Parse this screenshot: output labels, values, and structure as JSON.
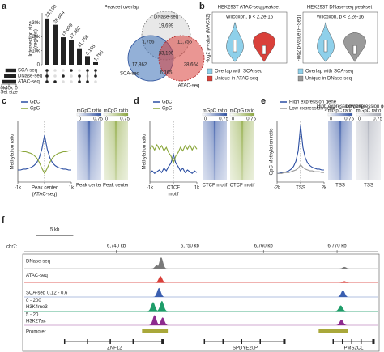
{
  "panel_a": {
    "label": "a",
    "title": "Peakset overlap",
    "upset": {
      "ylabel": "Intersection size",
      "ylabel_sub": "(regions)",
      "ylim": [
        0,
        36000
      ],
      "yticks": [
        0,
        {
          "value": 10000,
          "label": "10k"
        },
        {
          "value": 20000,
          "label": "20k"
        },
        {
          "value": 30000,
          "label": "30k"
        }
      ],
      "values": [
        33190,
        28664,
        19699,
        17862,
        11756,
        6165,
        1756
      ],
      "value_labels": [
        "33,190",
        "28,664",
        "19,699",
        "17,862",
        "11,756",
        "6,165",
        "1,756"
      ],
      "members": [
        [
          0,
          1,
          2
        ],
        [
          2
        ],
        [
          1
        ],
        [
          0
        ],
        [
          1,
          2
        ],
        [
          0,
          2
        ],
        [
          0,
          1
        ]
      ],
      "sets": [
        "SCA-seq",
        "DNase-seq",
        "ATAC-seq"
      ],
      "set_sizes": [
        58973,
        66401,
        79775
      ],
      "set_xlim": [
        80000,
        0
      ],
      "set_xticks": [
        {
          "value": 80000,
          "label": "80k"
        },
        {
          "value": 40000,
          "label": "40k"
        },
        0
      ],
      "set_label": "Set size"
    },
    "venn": {
      "labels": [
        "DNase-seq",
        "SCA-seq",
        "ATAC-seq"
      ],
      "colors": [
        "#bdbdbd",
        "#3b6fb6",
        "#d9403a"
      ],
      "regions": [
        "19,699",
        "11,756",
        "1,756",
        "17,862",
        "33,190",
        "28,664",
        "6,165"
      ]
    }
  },
  "panel_b": {
    "label": "b",
    "plots": [
      {
        "title": "HEK293T ATAC-seq peakset",
        "stat": "Wilcoxon, p < 2.2e-16",
        "ylabel": "-log2 p-value (MACS2)",
        "legend": [
          "Overlap with SCA-seq",
          "Unique in ATAC-seq"
        ],
        "colors": [
          "#8fd0ea",
          "#d9403a"
        ]
      },
      {
        "title": "HEK293T DNase-seq peakset",
        "stat": "Wilcoxon, p < 2.2e-16",
        "ylabel": "-log2 p-value (F-Seq)",
        "legend": [
          "Overlap with SCA-seq",
          "Unique in DNase-seq"
        ],
        "colors": [
          "#8fd0ea",
          "#9a9a9a"
        ]
      }
    ]
  },
  "panel_c": {
    "label": "c",
    "ylabel": "Methylation ratio",
    "ylim": [
      0.2,
      0.9
    ],
    "xticks": [
      {
        "value": -1000,
        "label": "-1k"
      },
      {
        "value": 0,
        "label": "Peak center"
      },
      {
        "value": 1000,
        "label": "1k"
      }
    ],
    "xsub": "(ATAC-seq)",
    "x": [
      -1000,
      -900,
      -800,
      -700,
      -600,
      -500,
      -400,
      -300,
      -200,
      -100,
      0,
      100,
      200,
      300,
      400,
      500,
      600,
      700,
      800,
      900,
      1000
    ],
    "series": [
      {
        "name": "GpC",
        "color": "#2b4ea2",
        "values": [
          0.34,
          0.34,
          0.35,
          0.35,
          0.36,
          0.37,
          0.39,
          0.42,
          0.48,
          0.58,
          0.74,
          0.58,
          0.48,
          0.42,
          0.39,
          0.37,
          0.36,
          0.35,
          0.35,
          0.34,
          0.34
        ]
      },
      {
        "name": "CpG",
        "color": "#8aa63a",
        "values": [
          0.56,
          0.56,
          0.55,
          0.55,
          0.54,
          0.53,
          0.51,
          0.48,
          0.43,
          0.36,
          0.3,
          0.36,
          0.43,
          0.48,
          0.51,
          0.53,
          0.54,
          0.55,
          0.55,
          0.56,
          0.56
        ]
      }
    ],
    "heatmaps": [
      {
        "title": [
          "mGpC ratio"
        ],
        "color": "#2b4ea2"
      },
      {
        "title": [
          "mCpG ratio"
        ],
        "color": "#8aa63a"
      }
    ],
    "cbar_ticks": [
      0,
      0.75
    ],
    "heat_label": "Peak center"
  },
  "panel_d": {
    "label": "d",
    "ylabel": "Methylation ratio",
    "ylim": [
      0.2,
      0.9
    ],
    "xticks": [
      {
        "value": -1000,
        "label": "-1k"
      },
      {
        "value": 0,
        "label": "CTCF"
      },
      {
        "value": 1000,
        "label": "1k"
      }
    ],
    "xsub": "motif",
    "x": [
      -1000,
      -900,
      -800,
      -700,
      -600,
      -500,
      -400,
      -300,
      -200,
      -100,
      0,
      100,
      200,
      300,
      400,
      500,
      600,
      700,
      800,
      900,
      1000
    ],
    "series": [
      {
        "name": "GpC",
        "color": "#2b4ea2",
        "values": [
          0.31,
          0.33,
          0.3,
          0.32,
          0.34,
          0.31,
          0.36,
          0.33,
          0.38,
          0.42,
          0.52,
          0.42,
          0.38,
          0.33,
          0.36,
          0.31,
          0.34,
          0.32,
          0.3,
          0.33,
          0.31
        ]
      },
      {
        "name": "CpG",
        "color": "#8aa63a",
        "values": [
          0.58,
          0.62,
          0.57,
          0.63,
          0.58,
          0.62,
          0.56,
          0.6,
          0.54,
          0.5,
          0.42,
          0.5,
          0.54,
          0.6,
          0.56,
          0.62,
          0.58,
          0.63,
          0.57,
          0.62,
          0.58
        ]
      }
    ],
    "heatmaps": [
      {
        "title": [
          "mGpC ratio"
        ],
        "color": "#2b4ea2"
      },
      {
        "title": [
          "mCpG ratio"
        ],
        "color": "#8aa63a"
      }
    ],
    "cbar_ticks": [
      0,
      0.75
    ],
    "heat_label": "CTCF motif"
  },
  "panel_e": {
    "label": "e",
    "ylabel": "GpC Methylation ratio",
    "ylim": [
      0.2,
      0.9
    ],
    "xticks": [
      {
        "value": -2000,
        "label": "-2k"
      },
      {
        "value": 0,
        "label": "TSS"
      },
      {
        "value": 2000,
        "label": "2k"
      }
    ],
    "x": [
      -2000,
      -1800,
      -1600,
      -1400,
      -1200,
      -1000,
      -800,
      -600,
      -400,
      -200,
      0,
      200,
      400,
      600,
      800,
      1000,
      1200,
      1400,
      1600,
      1800,
      2000
    ],
    "series": [
      {
        "name": "High expression gene",
        "color": "#2b4ea2",
        "values": [
          0.3,
          0.3,
          0.31,
          0.31,
          0.32,
          0.33,
          0.35,
          0.38,
          0.44,
          0.56,
          0.85,
          0.6,
          0.48,
          0.42,
          0.39,
          0.37,
          0.36,
          0.35,
          0.35,
          0.34,
          0.34
        ]
      },
      {
        "name": "Low expression gene",
        "color": "#9a9a9a",
        "values": [
          0.3,
          0.3,
          0.3,
          0.31,
          0.31,
          0.31,
          0.32,
          0.33,
          0.34,
          0.36,
          0.4,
          0.37,
          0.35,
          0.34,
          0.33,
          0.33,
          0.32,
          0.32,
          0.32,
          0.31,
          0.31
        ]
      }
    ],
    "heatmaps": [
      {
        "title": [
          "High expression gene",
          "mGpC ratio"
        ],
        "color": "#2b4ea2"
      },
      {
        "title": [
          "Low expression gene",
          "mGpC ratio"
        ],
        "color": "#a4a8b4"
      }
    ],
    "cbar_ticks": [
      0,
      0.75
    ],
    "heat_label": "TSS"
  },
  "panel_f": {
    "label": "f",
    "scale_label": "5 kb",
    "scale_kb": 5,
    "chrom": "chr7:",
    "xlim": [
      6727.5,
      6775.5
    ],
    "xticks": [
      {
        "value": 6740,
        "label": "6,740 kb"
      },
      {
        "value": 6750,
        "label": "6,750 kb"
      },
      {
        "value": 6760,
        "label": "6,760 kb"
      },
      {
        "value": 6770,
        "label": "6,770 kb"
      }
    ],
    "tracks": [
      {
        "name": "DNase-seq",
        "color": "#7a7a7a",
        "peaks": [
          6745.5,
          6746.1,
          6771.0
        ],
        "heights": [
          0.3,
          1.0,
          0.15
        ]
      },
      {
        "name": "ATAC-seq",
        "color": "#d9403a",
        "peaks": [
          6746.0,
          6771.0
        ],
        "heights": [
          0.6,
          0.15
        ]
      },
      {
        "name": "SCA-seq",
        "range": "0.12 - 0.6",
        "color": "#3b5fb0",
        "peaks": [
          6745.8,
          6770.8
        ],
        "heights": [
          0.8,
          0.6
        ]
      },
      {
        "name": "H3K4me3",
        "range": "0 - 200",
        "color": "#1f9d6a",
        "peaks": [
          6745.0,
          6746.2,
          6770.5
        ],
        "heights": [
          0.8,
          0.9,
          0.5
        ]
      },
      {
        "name": "H3K27ac",
        "range": "5 - 20",
        "color": "#8e2a8e",
        "peaks": [
          6745.2,
          6746.3,
          6770.6
        ],
        "heights": [
          0.9,
          0.7,
          0.5
        ]
      }
    ],
    "promoter": {
      "name": "Promoter",
      "color": "#a9a83a",
      "starts": [
        6743.5,
        6767.5
      ],
      "ends": [
        6747.0,
        6771.5
      ]
    },
    "genes": [
      {
        "name": "ZNF12",
        "start": 6733.0,
        "end": 6746.5
      },
      {
        "name": "SPDYE20P",
        "start": 6752.0,
        "end": 6763.0
      },
      {
        "name": "PMS2CL",
        "start": 6769.5,
        "end": 6775.0
      }
    ]
  }
}
